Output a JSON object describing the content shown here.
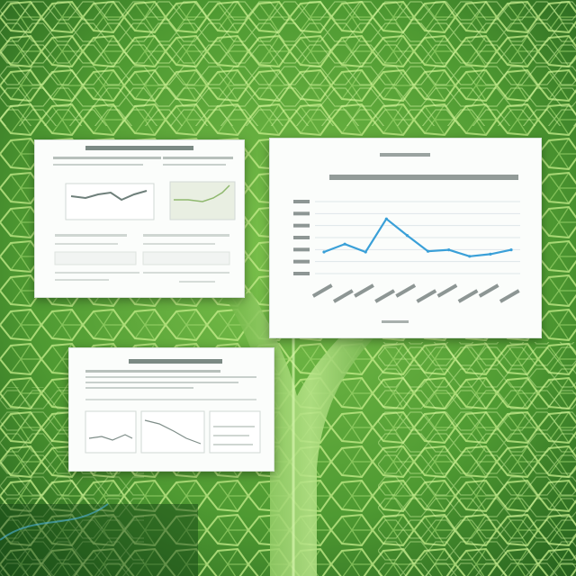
{
  "scene": {
    "description_colors": {
      "background_light": "#8fd05e",
      "background_dark": "#1f5a1a",
      "vein": "#c9f08e",
      "accent_blue": "#3aa0d8"
    }
  },
  "cards": [
    {
      "name": "dashboard-card-left",
      "illegible_text": true
    },
    {
      "name": "line-chart-card",
      "illegible_text": true
    },
    {
      "name": "report-card-bottom",
      "illegible_text": true
    }
  ],
  "chart_data": {
    "type": "line",
    "title": "",
    "xlabel": "",
    "ylabel": "",
    "categories": [
      "1",
      "2",
      "3",
      "4",
      "5",
      "6",
      "7",
      "8",
      "9",
      "10"
    ],
    "values": [
      3.0,
      4.1,
      3.0,
      7.6,
      5.3,
      3.1,
      3.3,
      2.4,
      2.7,
      3.3
    ],
    "ylim": [
      0,
      10
    ],
    "line_color": "#3aa0d8",
    "grid": true
  }
}
